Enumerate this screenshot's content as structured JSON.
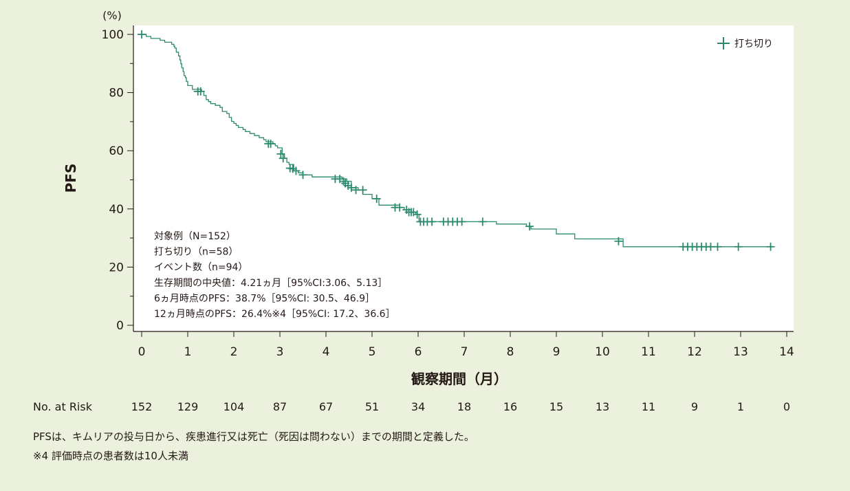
{
  "chart_data": {
    "type": "line",
    "subtype": "kaplan-meier",
    "ylabel": "PFS",
    "y_unit": "(%)",
    "xlabel": "観察期間（月）",
    "xlim": [
      0,
      14
    ],
    "ylim": [
      0,
      100
    ],
    "x_ticks": [
      "0",
      "1",
      "2",
      "3",
      "4",
      "5",
      "6",
      "7",
      "8",
      "9",
      "10",
      "11",
      "12",
      "13",
      "14"
    ],
    "y_ticks": [
      "0",
      "20",
      "40",
      "60",
      "80",
      "100"
    ],
    "grid": false,
    "legend": {
      "position": "top-right",
      "entries": [
        "打ち切り"
      ]
    },
    "series": [
      {
        "name": "PFS",
        "color": "#2b8a6e",
        "steps": [
          [
            0,
            100
          ],
          [
            0.1,
            99.3
          ],
          [
            0.2,
            98.6
          ],
          [
            0.4,
            98.0
          ],
          [
            0.5,
            97.3
          ],
          [
            0.65,
            96.6
          ],
          [
            0.7,
            95.9
          ],
          [
            0.72,
            95.3
          ],
          [
            0.75,
            93.9
          ],
          [
            0.8,
            92.6
          ],
          [
            0.83,
            91.2
          ],
          [
            0.85,
            89.9
          ],
          [
            0.87,
            88.5
          ],
          [
            0.9,
            87.2
          ],
          [
            0.92,
            85.8
          ],
          [
            0.95,
            85.1
          ],
          [
            0.97,
            83.8
          ],
          [
            1.0,
            82.4
          ],
          [
            1.1,
            81.1
          ],
          [
            1.3,
            80.4
          ],
          [
            1.35,
            79.0
          ],
          [
            1.4,
            77.6
          ],
          [
            1.45,
            76.9
          ],
          [
            1.5,
            76.2
          ],
          [
            1.6,
            75.6
          ],
          [
            1.7,
            74.9
          ],
          [
            1.75,
            73.5
          ],
          [
            1.85,
            72.8
          ],
          [
            1.9,
            71.5
          ],
          [
            1.95,
            70.1
          ],
          [
            2.0,
            69.4
          ],
          [
            2.05,
            68.7
          ],
          [
            2.1,
            68.0
          ],
          [
            2.2,
            67.3
          ],
          [
            2.25,
            66.6
          ],
          [
            2.35,
            65.9
          ],
          [
            2.45,
            65.2
          ],
          [
            2.55,
            64.5
          ],
          [
            2.65,
            63.8
          ],
          [
            2.7,
            63.1
          ],
          [
            2.85,
            62.4
          ],
          [
            2.9,
            61.7
          ],
          [
            2.95,
            61.0
          ],
          [
            3.05,
            58.9
          ],
          [
            3.1,
            57.4
          ],
          [
            3.15,
            56.0
          ],
          [
            3.2,
            55.3
          ],
          [
            3.3,
            53.1
          ],
          [
            3.4,
            52.4
          ],
          [
            3.5,
            51.7
          ],
          [
            3.7,
            51.0
          ],
          [
            4.35,
            50.3
          ],
          [
            4.45,
            49.5
          ],
          [
            4.55,
            47.3
          ],
          [
            4.7,
            46.5
          ],
          [
            4.8,
            45.0
          ],
          [
            5.0,
            43.5
          ],
          [
            5.15,
            41.3
          ],
          [
            5.6,
            40.5
          ],
          [
            5.7,
            39.7
          ],
          [
            5.85,
            38.9
          ],
          [
            5.95,
            38.1
          ],
          [
            6.02,
            35.6
          ],
          [
            7.7,
            34.8
          ],
          [
            8.35,
            34.0
          ],
          [
            8.45,
            33.1
          ],
          [
            9.0,
            31.4
          ],
          [
            9.4,
            29.7
          ],
          [
            10.45,
            27.0
          ],
          [
            13.7,
            27.0
          ]
        ],
        "censored": [
          [
            0.0,
            100
          ],
          [
            1.22,
            80.4
          ],
          [
            1.28,
            80.4
          ],
          [
            2.75,
            62.4
          ],
          [
            2.8,
            62.4
          ],
          [
            3.02,
            58.9
          ],
          [
            3.07,
            57.4
          ],
          [
            3.22,
            54.0
          ],
          [
            3.28,
            53.8
          ],
          [
            3.35,
            53.1
          ],
          [
            3.5,
            51.7
          ],
          [
            4.2,
            50.3
          ],
          [
            4.3,
            50.3
          ],
          [
            4.38,
            49.5
          ],
          [
            4.42,
            48.8
          ],
          [
            4.48,
            48.0
          ],
          [
            4.55,
            47.3
          ],
          [
            4.65,
            46.5
          ],
          [
            4.8,
            46.5
          ],
          [
            5.1,
            43.5
          ],
          [
            5.5,
            40.5
          ],
          [
            5.6,
            40.5
          ],
          [
            5.75,
            39.7
          ],
          [
            5.8,
            38.9
          ],
          [
            5.85,
            38.9
          ],
          [
            5.9,
            38.9
          ],
          [
            5.98,
            38.1
          ],
          [
            6.05,
            35.6
          ],
          [
            6.12,
            35.6
          ],
          [
            6.2,
            35.6
          ],
          [
            6.3,
            35.6
          ],
          [
            6.55,
            35.6
          ],
          [
            6.65,
            35.6
          ],
          [
            6.75,
            35.6
          ],
          [
            6.85,
            35.6
          ],
          [
            6.95,
            35.6
          ],
          [
            7.4,
            35.6
          ],
          [
            8.42,
            34.0
          ],
          [
            10.35,
            28.9
          ],
          [
            11.75,
            27.0
          ],
          [
            11.85,
            27.0
          ],
          [
            11.95,
            27.0
          ],
          [
            12.05,
            27.0
          ],
          [
            12.15,
            27.0
          ],
          [
            12.25,
            27.0
          ],
          [
            12.35,
            27.0
          ],
          [
            12.5,
            27.0
          ],
          [
            12.95,
            27.0
          ],
          [
            13.65,
            27.0
          ]
        ]
      }
    ],
    "stats_lines": [
      "対象例（N=152）",
      "打ち切り（n=58）",
      "イベント数（n=94）",
      "生存期間の中央値：4.21ヵ月［95%CI:3.06、5.13］",
      "6ヵ月時点のPFS：38.7%［95%CI: 30.5、46.9］",
      "12ヵ月時点のPFS：26.4%※4［95%CI: 17.2、36.6］"
    ],
    "risk_table": {
      "label": "No. at Risk",
      "values": [
        "152",
        "129",
        "104",
        "87",
        "67",
        "51",
        "34",
        "18",
        "16",
        "15",
        "13",
        "11",
        "9",
        "1",
        "0"
      ]
    }
  },
  "footnotes": [
    "PFSは、キムリアの投与日から、疾患進行又は死亡（死因は問わない）までの期間と定義した。",
    "※4 評価時点の患者数は10人未満"
  ]
}
